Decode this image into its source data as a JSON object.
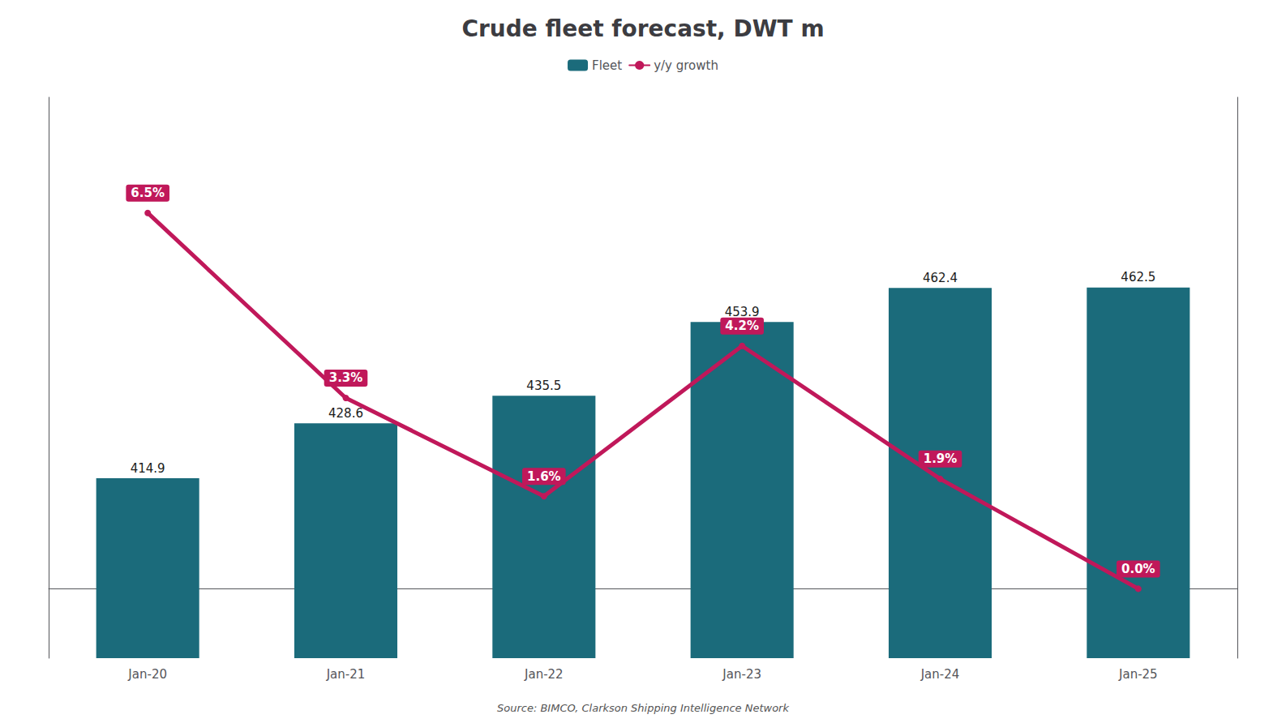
{
  "chart_data": {
    "type": "bar",
    "title": "Crude fleet forecast, DWT m",
    "categories": [
      "Jan-20",
      "Jan-21",
      "Jan-22",
      "Jan-23",
      "Jan-24",
      "Jan-25"
    ],
    "series": [
      {
        "name": "Fleet",
        "type": "bar",
        "color": "#1B6B7B",
        "values": [
          414.9,
          428.6,
          435.5,
          453.9,
          462.4,
          462.5
        ]
      },
      {
        "name": "y/y growth",
        "type": "line",
        "color": "#C0185A",
        "axis": "y2",
        "values": [
          6.5,
          3.3,
          1.6,
          4.2,
          1.9,
          0.0
        ],
        "value_labels": [
          "6.5%",
          "3.3%",
          "1.6%",
          "4.2%",
          "1.9%",
          "0.0%"
        ]
      }
    ],
    "ylim": [
      370,
      510
    ],
    "y2lim": [
      -1.2,
      8.5
    ],
    "tick_labels": "x",
    "grid": false,
    "legend": "top",
    "data_labels": true,
    "annotations": [
      "Source: BIMCO, Clarkson Shipping Intelligence Network"
    ]
  }
}
